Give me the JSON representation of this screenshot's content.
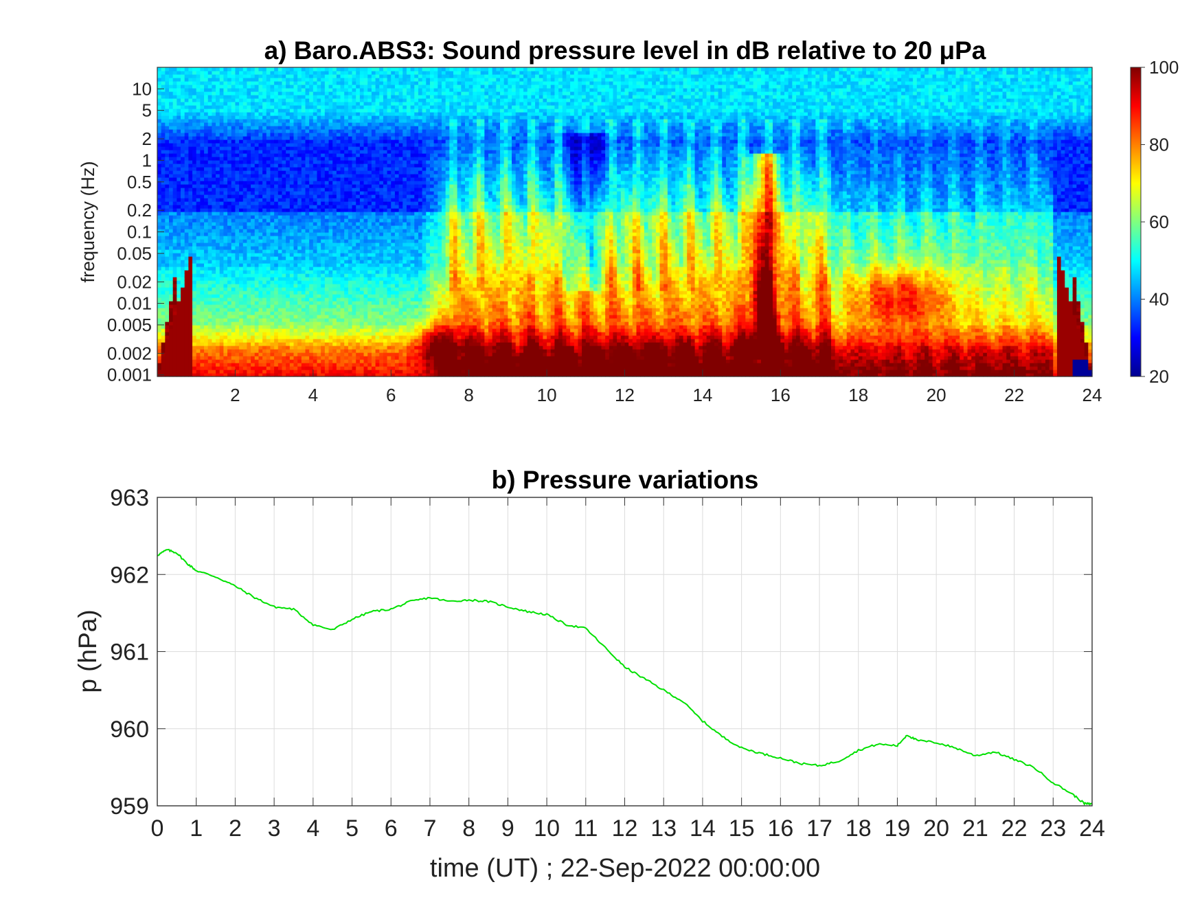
{
  "chart_data": [
    {
      "type": "heatmap",
      "title": "a) Baro.ABS3: Sound pressure level in dB relative to 20 μPa",
      "ylabel": "frequency (Hz)",
      "xlabel": "",
      "y_scale": "log",
      "xlim": [
        0,
        24
      ],
      "ylim": [
        0.00095,
        20
      ],
      "x_ticks": [
        "2",
        "4",
        "6",
        "8",
        "10",
        "12",
        "14",
        "16",
        "18",
        "20",
        "22",
        "24"
      ],
      "y_ticks": [
        "0.001",
        "0.002",
        "0.005",
        "0.01",
        "0.02",
        "0.05",
        "0.1",
        "0.2",
        "0.5",
        "1",
        "2",
        "5",
        "10"
      ],
      "colorbar": {
        "colormap": "jet",
        "clim": [
          20,
          100
        ],
        "ticks": [
          "20",
          "40",
          "60",
          "80",
          "100"
        ]
      },
      "features": [
        {
          "x_start": 0,
          "x_end": 7,
          "frequency_band": "0.2-2",
          "level_db": 30,
          "description": "quiet blue band"
        },
        {
          "x_start": 7.5,
          "x_end": 17,
          "frequency_band": "0.005-2",
          "level_db": 65,
          "description": "broadband energy"
        },
        {
          "x_start": 15.3,
          "x_end": 15.9,
          "frequency_band": "0.003-0.2",
          "level_db": 90,
          "description": "strong burst"
        },
        {
          "x_start": 17.5,
          "x_end": 21,
          "frequency_band": "0.005-0.02",
          "level_db": 85,
          "description": "elevated patch"
        },
        {
          "x_start": 0,
          "x_end": 24,
          "frequency_band": "0.001-0.002",
          "level_db": 90,
          "description": "high low-frequency floor"
        },
        {
          "x_start": 0,
          "x_end": 24,
          "frequency_band": "5-20",
          "level_db": 47,
          "description": "uniform high-frequency band"
        }
      ]
    },
    {
      "type": "line",
      "title": "b) Pressure variations",
      "xlabel": "time (UT) ; 22-Sep-2022 00:00:00",
      "ylabel": "p (hPa)",
      "xlim": [
        0,
        24
      ],
      "ylim": [
        959,
        963
      ],
      "grid": true,
      "x_ticks": [
        "0",
        "1",
        "2",
        "3",
        "4",
        "5",
        "6",
        "7",
        "8",
        "9",
        "10",
        "11",
        "12",
        "13",
        "14",
        "15",
        "16",
        "17",
        "18",
        "19",
        "20",
        "21",
        "22",
        "23",
        "24"
      ],
      "y_ticks": [
        "959",
        "960",
        "961",
        "962",
        "963"
      ],
      "color": "#00e000",
      "series": [
        {
          "x": [
            0,
            0.25,
            0.5,
            0.75,
            1,
            1.5,
            2,
            2.5,
            3,
            3.5,
            4,
            4.5,
            5,
            5.5,
            6,
            6.5,
            7,
            7.5,
            8,
            8.5,
            9,
            9.5,
            10,
            10.5,
            11,
            11.5,
            12,
            12.5,
            13,
            13.5,
            14,
            14.5,
            15,
            15.5,
            16,
            16.5,
            17,
            17.5,
            18,
            18.5,
            19,
            19.25,
            19.5,
            20,
            20.5,
            21,
            21.5,
            22,
            22.5,
            23,
            23.5,
            23.8,
            24
          ],
          "y": [
            962.25,
            962.32,
            962.28,
            962.15,
            962.05,
            961.97,
            961.85,
            961.7,
            961.58,
            961.55,
            961.35,
            961.28,
            961.42,
            961.52,
            961.55,
            961.65,
            961.7,
            961.65,
            961.67,
            961.65,
            961.58,
            961.52,
            961.48,
            961.35,
            961.3,
            961.05,
            960.8,
            960.65,
            960.5,
            960.35,
            960.1,
            959.9,
            959.75,
            959.68,
            959.62,
            959.55,
            959.52,
            959.58,
            959.72,
            959.8,
            959.78,
            959.92,
            959.85,
            959.82,
            959.75,
            959.65,
            959.7,
            959.6,
            959.5,
            959.3,
            959.15,
            959.03,
            959.02
          ]
        }
      ]
    }
  ]
}
